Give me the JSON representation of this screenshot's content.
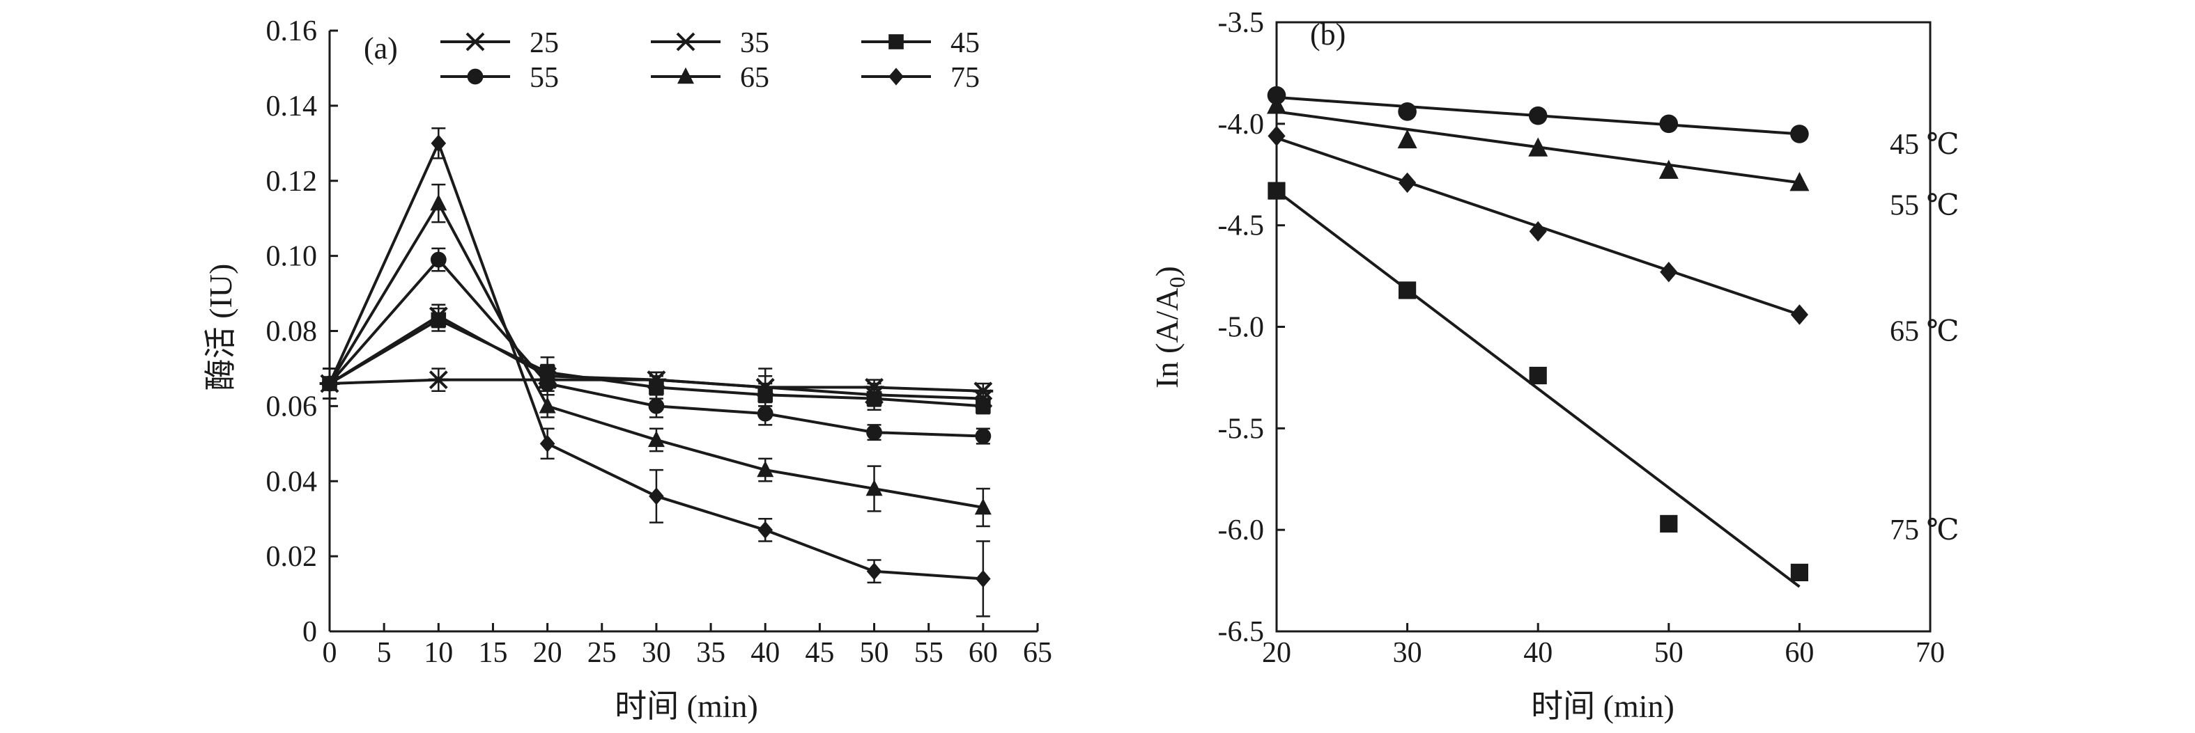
{
  "chart_data": [
    {
      "type": "line",
      "panel_label": "(a)",
      "xlabel": "时间 (min)",
      "ylabel": "酶活 (IU)",
      "xlim": [
        0,
        65
      ],
      "ylim": [
        0,
        0.16
      ],
      "xticks": [
        0,
        5,
        10,
        15,
        20,
        25,
        30,
        35,
        40,
        45,
        50,
        55,
        60,
        65
      ],
      "yticks": [
        "0",
        "0.02",
        "0.04",
        "0.06",
        "0.08",
        "0.10",
        "0.12",
        "0.14",
        "0.16"
      ],
      "x": [
        0,
        10,
        20,
        30,
        40,
        50,
        60
      ],
      "grid": false,
      "legend_position": "top",
      "series": [
        {
          "name": "25",
          "marker": "asterisk",
          "values": [
            0.066,
            0.067,
            0.067,
            0.067,
            0.065,
            0.065,
            0.064
          ],
          "errors": [
            0.004,
            0.003,
            0.003,
            0.002,
            0.003,
            0.002,
            0.002
          ]
        },
        {
          "name": "35",
          "marker": "x",
          "values": [
            0.066,
            0.084,
            0.068,
            0.067,
            0.065,
            0.063,
            0.062
          ],
          "errors": [
            0.004,
            0.003,
            0.003,
            0.002,
            0.005,
            0.003,
            0.002
          ]
        },
        {
          "name": "45",
          "marker": "square",
          "values": [
            0.066,
            0.083,
            0.069,
            0.065,
            0.063,
            0.062,
            0.06
          ],
          "errors": [
            0.004,
            0.003,
            0.004,
            0.003,
            0.003,
            0.003,
            0.002
          ]
        },
        {
          "name": "55",
          "marker": "circle",
          "values": [
            0.066,
            0.099,
            0.066,
            0.06,
            0.058,
            0.053,
            0.052
          ],
          "errors": [
            0.004,
            0.003,
            0.003,
            0.003,
            0.003,
            0.002,
            0.002
          ]
        },
        {
          "name": "65",
          "marker": "triangle",
          "values": [
            0.066,
            0.114,
            0.06,
            0.051,
            0.043,
            0.038,
            0.033
          ],
          "errors": [
            0.004,
            0.005,
            0.003,
            0.003,
            0.003,
            0.006,
            0.005
          ]
        },
        {
          "name": "75",
          "marker": "diamond",
          "values": [
            0.066,
            0.13,
            0.05,
            0.036,
            0.027,
            0.016,
            0.014
          ],
          "errors": [
            0.004,
            0.004,
            0.004,
            0.007,
            0.003,
            0.003,
            0.01
          ]
        }
      ]
    },
    {
      "type": "scatter",
      "panel_label": "(b)",
      "xlabel": "时间 (min)",
      "ylabel_main": "In (A/A",
      "ylabel_sub": "0",
      "ylabel_close": ")",
      "xlim": [
        20,
        70
      ],
      "ylim": [
        -6.5,
        -3.5
      ],
      "xticks": [
        20,
        30,
        40,
        50,
        60,
        70
      ],
      "yticks": [
        "-6.5",
        "-6.0",
        "-5.5",
        "-5.0",
        "-4.5",
        "-4.0",
        "-3.5"
      ],
      "ytick_values": [
        -6.5,
        -6.0,
        -5.5,
        -5.0,
        -4.5,
        -4.0,
        -3.5
      ],
      "grid": false,
      "series": [
        {
          "name": "45 ℃",
          "marker": "circle",
          "x": [
            20,
            30,
            40,
            50,
            60
          ],
          "y": [
            -3.86,
            -3.94,
            -3.96,
            -4.0,
            -4.05
          ],
          "fit": [
            -3.87,
            -4.05
          ]
        },
        {
          "name": "55 ℃",
          "marker": "triangle",
          "x": [
            20,
            30,
            40,
            50,
            60
          ],
          "y": [
            -3.91,
            -4.08,
            -4.12,
            -4.23,
            -4.29
          ],
          "fit": [
            -3.94,
            -4.29
          ]
        },
        {
          "name": "65 ℃",
          "marker": "diamond",
          "x": [
            20,
            30,
            40,
            50,
            60
          ],
          "y": [
            -4.06,
            -4.29,
            -4.53,
            -4.73,
            -4.94
          ],
          "fit": [
            -4.07,
            -4.94
          ]
        },
        {
          "name": "75 ℃",
          "marker": "square",
          "x": [
            20,
            30,
            40,
            50,
            60
          ],
          "y": [
            -4.33,
            -4.82,
            -5.24,
            -5.97,
            -6.21
          ],
          "fit": [
            -4.33,
            -6.28
          ]
        }
      ]
    }
  ]
}
